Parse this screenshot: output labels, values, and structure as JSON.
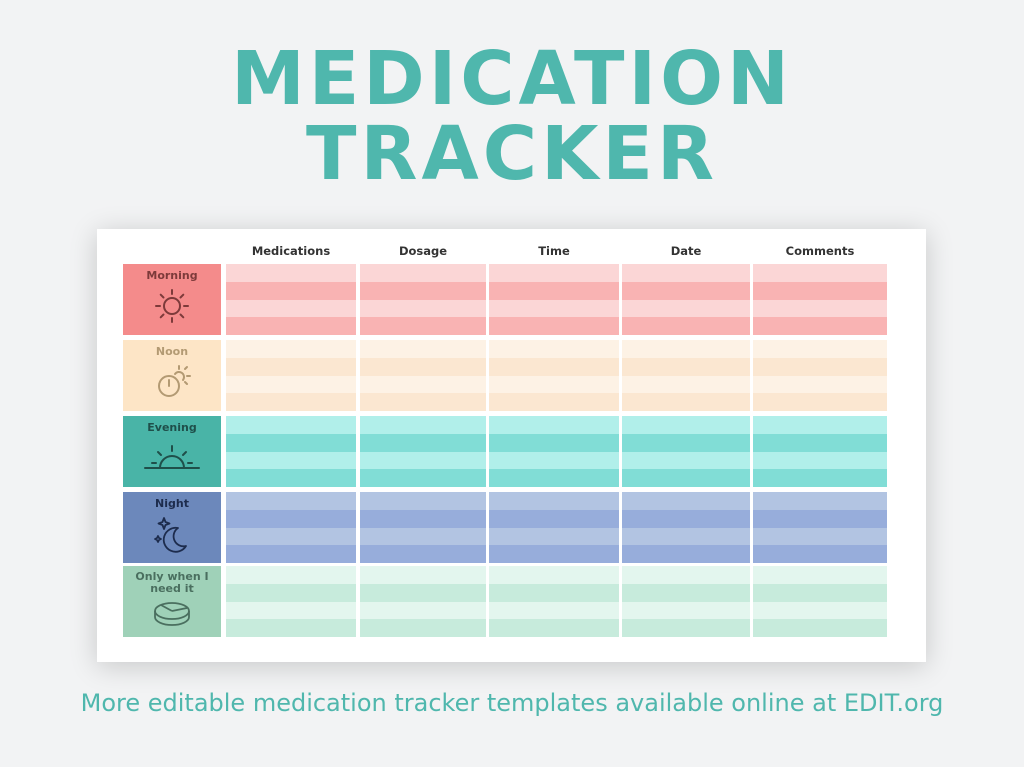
{
  "title": {
    "line1": "MEDICATION",
    "line2": "TRACKER"
  },
  "columns": [
    "Medications",
    "Dosage",
    "Time",
    "Date",
    "Comments"
  ],
  "rows": [
    {
      "label": "Morning",
      "icon": "sun-icon",
      "label_bg": "#f48b8b",
      "label_color": "#7d3a3a",
      "stripe_dark": "#f9b3b3",
      "stripe_light": "#fbd6d6"
    },
    {
      "label": "Noon",
      "icon": "sun-clock-icon",
      "label_bg": "#fde5c6",
      "label_color": "#b39a73",
      "stripe_dark": "#fbe7d1",
      "stripe_light": "#fdf2e5"
    },
    {
      "label": "Evening",
      "icon": "sunset-icon",
      "label_bg": "#49b4a7",
      "label_color": "#1f4f4a",
      "stripe_dark": "#81ddd6",
      "stripe_light": "#b1efea"
    },
    {
      "label": "Night",
      "icon": "moon-stars-icon",
      "label_bg": "#6c88bb",
      "label_color": "#1d2c4d",
      "stripe_dark": "#97addb",
      "stripe_light": "#b2c4e2"
    },
    {
      "label": "Only when I need it",
      "icon": "pill-icon",
      "label_bg": "#9fd1b8",
      "label_color": "#4a6f5f",
      "stripe_dark": "#c7ebdc",
      "stripe_light": "#e3f6ee"
    }
  ],
  "footer": "More editable medication tracker templates available online at EDIT.org"
}
